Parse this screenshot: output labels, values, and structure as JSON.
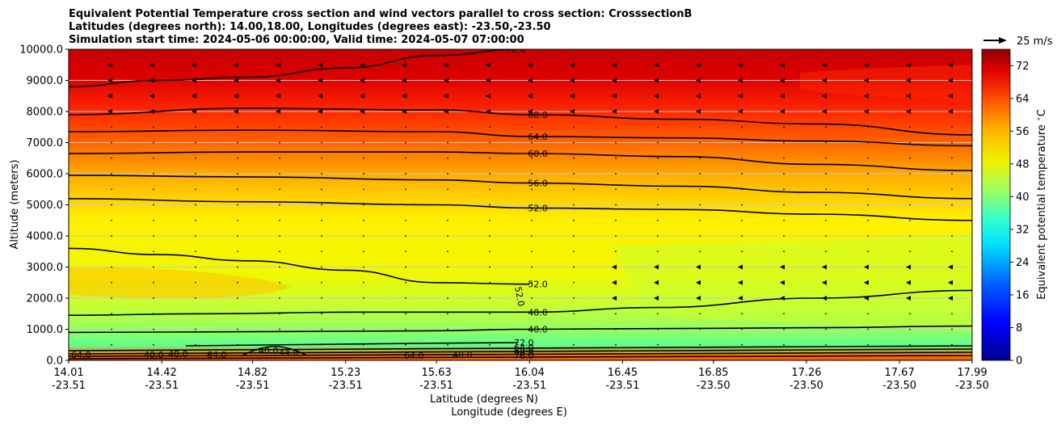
{
  "chart_data": {
    "type": "heatmap",
    "title_lines": [
      "Equivalent Potential Temperature cross section and wind vectors parallel to cross section: CrosssectionB",
      "Latitudes (degrees north): 14.00,18.00, Longitudes (degrees east): -23.50,-23.50",
      "Simulation start time: 2024-05-06 00:00:00, Valid time: 2024-05-07 07:00:00"
    ],
    "ylabel": "Altitude (meters)",
    "xlabel_lat": "Latitude (degrees N)",
    "xlabel_lon": "Longitude (degrees E)",
    "ylim": [
      0,
      10000
    ],
    "y_ticks": [
      "0.0",
      "1000.0",
      "2000.0",
      "3000.0",
      "4000.0",
      "5000.0",
      "6000.0",
      "7000.0",
      "8000.0",
      "9000.0",
      "10000.0"
    ],
    "x_ticks": [
      {
        "lat": "14.01",
        "lon": "-23.51"
      },
      {
        "lat": "14.42",
        "lon": "-23.51"
      },
      {
        "lat": "14.82",
        "lon": "-23.51"
      },
      {
        "lat": "15.23",
        "lon": "-23.51"
      },
      {
        "lat": "15.63",
        "lon": "-23.51"
      },
      {
        "lat": "16.04",
        "lon": "-23.51"
      },
      {
        "lat": "16.45",
        "lon": "-23.51"
      },
      {
        "lat": "16.85",
        "lon": "-23.50"
      },
      {
        "lat": "17.26",
        "lon": "-23.50"
      },
      {
        "lat": "17.67",
        "lon": "-23.50"
      },
      {
        "lat": "17.99",
        "lon": "-23.50"
      }
    ],
    "colorbar": {
      "label": "Equivalent potential temperature $^\\circ$C",
      "min": 0,
      "max": 76,
      "ticks": [
        "0",
        "8",
        "16",
        "24",
        "32",
        "40",
        "48",
        "56",
        "64",
        "72"
      ]
    },
    "quiver_key": "25 m/s",
    "contour_levels": [
      {
        "value": 40,
        "label": "40.0",
        "profile": [
          [
            14.01,
            900
          ],
          [
            14.8,
            920
          ],
          [
            15.6,
            950
          ],
          [
            16.04,
            1000
          ],
          [
            16.6,
            1020
          ],
          [
            17.3,
            1050
          ],
          [
            17.99,
            1100
          ]
        ]
      },
      {
        "value": 48,
        "label": "48.0",
        "profile": [
          [
            14.01,
            1450
          ],
          [
            14.6,
            1500
          ],
          [
            15.3,
            1550
          ],
          [
            16.04,
            1550
          ],
          [
            16.6,
            1700
          ],
          [
            17.3,
            2000
          ],
          [
            17.99,
            2250
          ]
        ]
      },
      {
        "value": 52,
        "label": "52.0",
        "profile": [
          [
            14.01,
            3600
          ],
          [
            14.4,
            3400
          ],
          [
            14.8,
            3200
          ],
          [
            15.23,
            2900
          ],
          [
            15.63,
            2500
          ],
          [
            16.04,
            2450
          ]
        ]
      },
      {
        "value": 52,
        "label": "52.0",
        "profile": [
          [
            14.01,
            5200
          ],
          [
            14.8,
            5100
          ],
          [
            15.63,
            5000
          ],
          [
            16.04,
            4900
          ],
          [
            16.7,
            4850
          ],
          [
            17.3,
            4700
          ],
          [
            17.99,
            4500
          ]
        ]
      },
      {
        "value": 56,
        "label": "56.0",
        "profile": [
          [
            14.01,
            5950
          ],
          [
            14.8,
            5900
          ],
          [
            15.63,
            5800
          ],
          [
            16.04,
            5700
          ],
          [
            16.7,
            5600
          ],
          [
            17.3,
            5400
          ],
          [
            17.99,
            5200
          ]
        ]
      },
      {
        "value": 60,
        "label": "60.0",
        "profile": [
          [
            14.01,
            6650
          ],
          [
            14.8,
            6700
          ],
          [
            15.63,
            6700
          ],
          [
            16.04,
            6650
          ],
          [
            16.7,
            6550
          ],
          [
            17.3,
            6300
          ],
          [
            17.99,
            6100
          ]
        ]
      },
      {
        "value": 64,
        "label": "64.0",
        "profile": [
          [
            14.01,
            7350
          ],
          [
            14.8,
            7400
          ],
          [
            15.63,
            7350
          ],
          [
            16.04,
            7200
          ],
          [
            16.7,
            7150
          ],
          [
            17.3,
            7050
          ],
          [
            17.99,
            6900
          ]
        ]
      },
      {
        "value": 68,
        "label": "68.0",
        "profile": [
          [
            14.01,
            7900
          ],
          [
            14.8,
            8100
          ],
          [
            15.63,
            8050
          ],
          [
            16.04,
            7900
          ],
          [
            16.7,
            7750
          ],
          [
            17.3,
            7600
          ],
          [
            17.99,
            7250
          ]
        ]
      },
      {
        "value": 72,
        "label": "72.0",
        "profile": [
          [
            14.01,
            8800
          ],
          [
            14.4,
            9000
          ],
          [
            14.8,
            9100
          ],
          [
            15.23,
            9400
          ],
          [
            15.63,
            9800
          ],
          [
            16.0,
            10000
          ]
        ]
      }
    ],
    "low_level_labels": [
      "64.0",
      "40.0",
      "48.0",
      "64.0",
      "40.0",
      "44.0",
      "72.0",
      "64.0",
      "68.0",
      "76.0",
      "40.0",
      "64.0"
    ],
    "inline_label_rotated": "52.0"
  },
  "colors": {
    "contour": "#000000",
    "arrow": "#000000",
    "grid": "#c8c8c8"
  }
}
